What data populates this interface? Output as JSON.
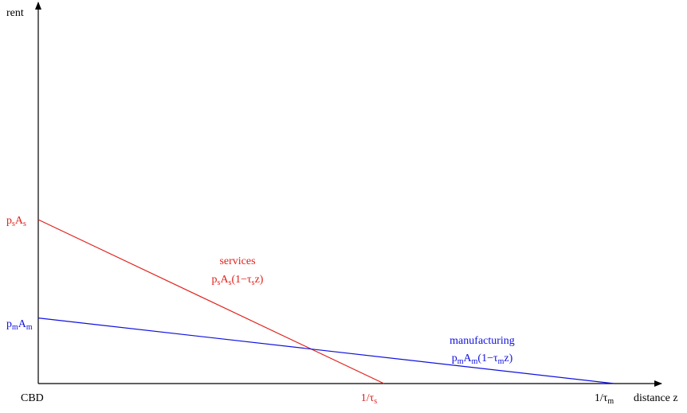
{
  "chart_data": {
    "type": "line",
    "title": "",
    "ylabel": "rent",
    "xlabel": "distance z",
    "origin_label": "CBD",
    "series": [
      {
        "name": "services",
        "formula_base": "p",
        "formula_base_sub": "s",
        "formula_A": "A",
        "formula_A_sub": "s",
        "formula_mid": "(1−τ",
        "formula_tau_sub": "s",
        "formula_end": "z)",
        "color": "#e0201b",
        "intercept_label": {
          "p": "p",
          "p_sub": "s",
          "A": "A",
          "A_sub": "s"
        },
        "zero_label": {
          "prefix": "1/τ",
          "sub": "s"
        },
        "y_intercept": 0.5,
        "x_zero": 0.6
      },
      {
        "name": "manufacturing",
        "formula_base": "p",
        "formula_base_sub": "m",
        "formula_A": "A",
        "formula_A_sub": "m",
        "formula_mid": "(1−τ",
        "formula_tau_sub": "m",
        "formula_end": "z)",
        "color": "#1010e0",
        "intercept_label": {
          "p": "p",
          "p_sub": "m",
          "A": "A",
          "A_sub": "m"
        },
        "zero_label": {
          "prefix": "1/τ",
          "sub": "m"
        },
        "y_intercept": 0.2,
        "x_zero": 1.0
      }
    ],
    "xlim": [
      0,
      1.05
    ],
    "ylim": [
      0,
      1.15
    ],
    "grid": false,
    "legend": "none",
    "axis_color": "#000000"
  }
}
